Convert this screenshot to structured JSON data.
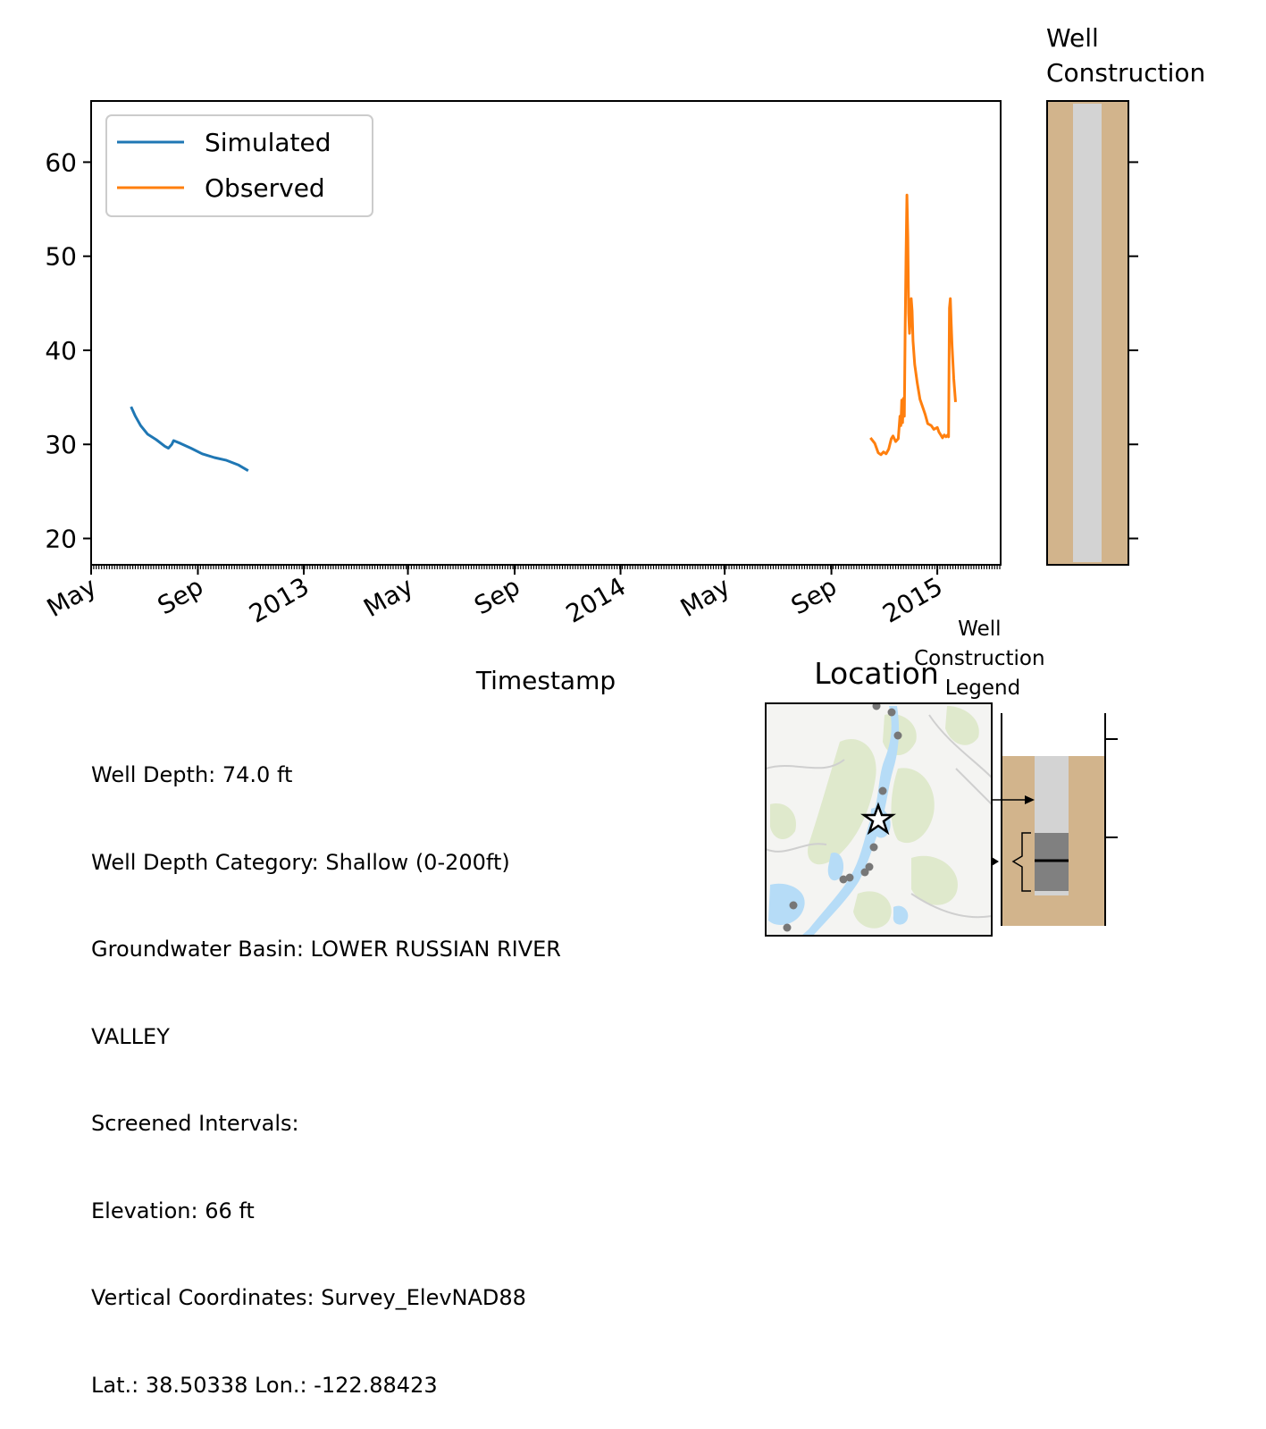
{
  "colors": {
    "simulated": "#1f77b4",
    "observed": "#ff7f0e",
    "soil": "#d2b48c",
    "casing": "#d3d3d3",
    "screen": "#808080",
    "map_water": "#b6dcf7",
    "map_green": "#dfe9cc",
    "map_land": "#f4f4f2",
    "well_marker": "#777777"
  },
  "chart_data": [
    {
      "type": "line",
      "title": "",
      "xlabel": "Timestamp",
      "ylabel": "",
      "ylim": [
        17.2,
        66.5
      ],
      "xlim": [
        "2012-05-01",
        "2015-03-15"
      ],
      "yticks": [
        "20",
        "30",
        "40",
        "50",
        "60"
      ],
      "xticks": [
        {
          "date": "2012-05-01",
          "label": "May"
        },
        {
          "date": "2012-09-01",
          "label": "Sep"
        },
        {
          "date": "2013-01-01",
          "label": "2013"
        },
        {
          "date": "2013-05-01",
          "label": "May"
        },
        {
          "date": "2013-09-01",
          "label": "Sep"
        },
        {
          "date": "2014-01-01",
          "label": "2014"
        },
        {
          "date": "2014-05-01",
          "label": "May"
        },
        {
          "date": "2014-09-01",
          "label": "Sep"
        },
        {
          "date": "2015-01-01",
          "label": "2015"
        }
      ],
      "legend_position": "upper-left",
      "grid": false,
      "series": [
        {
          "name": "Simulated",
          "points": [
            [
              "2012-06-16",
              34.0
            ],
            [
              "2012-06-21",
              33.0
            ],
            [
              "2012-06-27",
              32.0
            ],
            [
              "2012-07-05",
              31.1
            ],
            [
              "2012-07-15",
              30.5
            ],
            [
              "2012-07-25",
              29.8
            ],
            [
              "2012-07-29",
              29.6
            ],
            [
              "2012-08-02",
              30.0
            ],
            [
              "2012-08-04",
              30.4
            ],
            [
              "2012-08-12",
              30.1
            ],
            [
              "2012-08-24",
              29.6
            ],
            [
              "2012-09-06",
              29.0
            ],
            [
              "2012-09-20",
              28.6
            ],
            [
              "2012-10-04",
              28.3
            ],
            [
              "2012-10-18",
              27.8
            ],
            [
              "2012-10-29",
              27.2
            ]
          ]
        },
        {
          "name": "Observed",
          "points": [
            [
              "2014-10-16",
              30.7
            ],
            [
              "2014-10-21",
              30.1
            ],
            [
              "2014-10-25",
              29.1
            ],
            [
              "2014-10-28",
              28.9
            ],
            [
              "2014-10-31",
              29.2
            ],
            [
              "2014-11-03",
              29.0
            ],
            [
              "2014-11-06",
              29.5
            ],
            [
              "2014-11-09",
              30.6
            ],
            [
              "2014-11-11",
              30.9
            ],
            [
              "2014-11-14",
              30.3
            ],
            [
              "2014-11-17",
              30.6
            ],
            [
              "2014-11-19",
              33.0
            ],
            [
              "2014-11-20",
              32.0
            ],
            [
              "2014-11-21",
              34.7
            ],
            [
              "2014-11-22",
              32.3
            ],
            [
              "2014-11-23",
              34.9
            ],
            [
              "2014-11-24",
              33.0
            ],
            [
              "2014-11-25",
              42.0
            ],
            [
              "2014-11-26",
              50.0
            ],
            [
              "2014-11-27",
              56.5
            ],
            [
              "2014-11-28",
              52.0
            ],
            [
              "2014-11-29",
              44.0
            ],
            [
              "2014-11-30",
              41.8
            ],
            [
              "2014-12-01",
              43.5
            ],
            [
              "2014-12-02",
              45.5
            ],
            [
              "2014-12-03",
              44.2
            ],
            [
              "2014-12-04",
              41.0
            ],
            [
              "2014-12-06",
              38.5
            ],
            [
              "2014-12-09",
              36.5
            ],
            [
              "2014-12-12",
              34.8
            ],
            [
              "2014-12-15",
              34.0
            ],
            [
              "2014-12-18",
              33.2
            ],
            [
              "2014-12-21",
              32.2
            ],
            [
              "2014-12-25",
              32.0
            ],
            [
              "2014-12-28",
              31.6
            ],
            [
              "2015-01-01",
              31.8
            ],
            [
              "2015-01-03",
              31.3
            ],
            [
              "2015-01-05",
              31.0
            ],
            [
              "2015-01-07",
              30.7
            ],
            [
              "2015-01-09",
              31.0
            ],
            [
              "2015-01-11",
              30.8
            ],
            [
              "2015-01-13",
              31.0
            ],
            [
              "2015-01-14",
              30.8
            ],
            [
              "2015-01-15",
              44.5
            ],
            [
              "2015-01-16",
              45.5
            ],
            [
              "2015-01-17",
              43.0
            ],
            [
              "2015-01-18",
              40.5
            ],
            [
              "2015-01-20",
              37.0
            ],
            [
              "2015-01-22",
              34.5
            ]
          ]
        }
      ]
    },
    {
      "type": "diagram",
      "title": "Well\nConstruction",
      "elements": [
        "soil",
        "casing"
      ]
    },
    {
      "type": "map",
      "title": "Location"
    },
    {
      "type": "diagram",
      "title": "Well\nConstruction\nLegend"
    }
  ],
  "well_info": [
    "Well Depth: 74.0 ft",
    "Well Depth Category: Shallow (0-200ft)",
    "Groundwater Basin: LOWER RUSSIAN RIVER",
    "VALLEY",
    "Screened Intervals:",
    "Elevation: 66 ft",
    "Vertical Coordinates: Survey_ElevNAD88",
    "Lat.: 38.50338 Lon.: -122.88423"
  ]
}
